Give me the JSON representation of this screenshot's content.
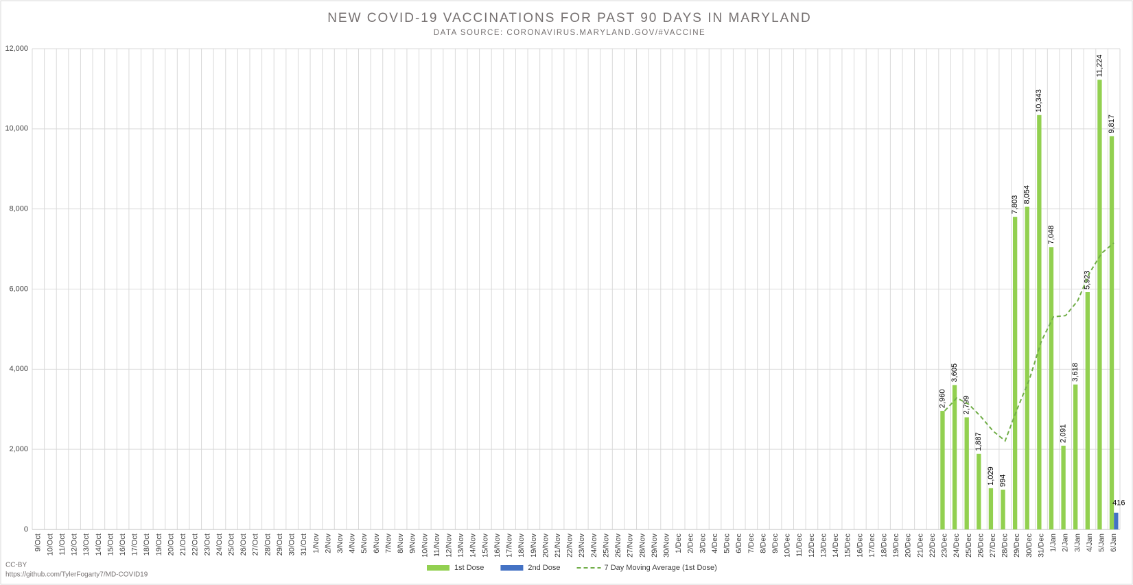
{
  "chart_data": {
    "type": "bar",
    "title": "NEW COVID-19 VACCINATIONS FOR PAST 90 DAYS IN MARYLAND",
    "subtitle": "DATA SOURCE: CORONAVIRUS.MARYLAND.GOV/#VACCINE",
    "annotations": [
      "CC-BY",
      "https://github.com/TylerFogarty7/MD-COVID19"
    ],
    "categories": [
      "9/Oct",
      "10/Oct",
      "11/Oct",
      "12/Oct",
      "13/Oct",
      "14/Oct",
      "15/Oct",
      "16/Oct",
      "17/Oct",
      "18/Oct",
      "19/Oct",
      "20/Oct",
      "21/Oct",
      "22/Oct",
      "23/Oct",
      "24/Oct",
      "25/Oct",
      "26/Oct",
      "27/Oct",
      "28/Oct",
      "29/Oct",
      "30/Oct",
      "31/Oct",
      "1/Nov",
      "2/Nov",
      "3/Nov",
      "4/Nov",
      "5/Nov",
      "6/Nov",
      "7/Nov",
      "8/Nov",
      "9/Nov",
      "10/Nov",
      "11/Nov",
      "12/Nov",
      "13/Nov",
      "14/Nov",
      "15/Nov",
      "16/Nov",
      "17/Nov",
      "18/Nov",
      "19/Nov",
      "20/Nov",
      "21/Nov",
      "22/Nov",
      "23/Nov",
      "24/Nov",
      "25/Nov",
      "26/Nov",
      "27/Nov",
      "28/Nov",
      "29/Nov",
      "30/Nov",
      "1/Dec",
      "2/Dec",
      "3/Dec",
      "4/Dec",
      "5/Dec",
      "6/Dec",
      "7/Dec",
      "8/Dec",
      "9/Dec",
      "10/Dec",
      "11/Dec",
      "12/Dec",
      "13/Dec",
      "14/Dec",
      "15/Dec",
      "16/Dec",
      "17/Dec",
      "18/Dec",
      "19/Dec",
      "20/Dec",
      "21/Dec",
      "22/Dec",
      "23/Dec",
      "24/Dec",
      "25/Dec",
      "26/Dec",
      "27/Dec",
      "28/Dec",
      "29/Dec",
      "30/Dec",
      "31/Dec",
      "1/Jan",
      "2/Jan",
      "3/Jan",
      "4/Jan",
      "5/Jan",
      "6/Jan"
    ],
    "series": [
      {
        "name": "1st Dose",
        "color": "#92d050",
        "type": "bar",
        "values": [
          null,
          null,
          null,
          null,
          null,
          null,
          null,
          null,
          null,
          null,
          null,
          null,
          null,
          null,
          null,
          null,
          null,
          null,
          null,
          null,
          null,
          null,
          null,
          null,
          null,
          null,
          null,
          null,
          null,
          null,
          null,
          null,
          null,
          null,
          null,
          null,
          null,
          null,
          null,
          null,
          null,
          null,
          null,
          null,
          null,
          null,
          null,
          null,
          null,
          null,
          null,
          null,
          null,
          null,
          null,
          null,
          null,
          null,
          null,
          null,
          null,
          null,
          null,
          null,
          null,
          null,
          null,
          null,
          null,
          null,
          null,
          null,
          null,
          null,
          null,
          2960,
          3605,
          2799,
          1887,
          1029,
          994,
          7803,
          8054,
          10343,
          7048,
          2091,
          3618,
          5923,
          11224,
          9817
        ],
        "value_labels": [
          null,
          null,
          null,
          null,
          null,
          null,
          null,
          null,
          null,
          null,
          null,
          null,
          null,
          null,
          null,
          null,
          null,
          null,
          null,
          null,
          null,
          null,
          null,
          null,
          null,
          null,
          null,
          null,
          null,
          null,
          null,
          null,
          null,
          null,
          null,
          null,
          null,
          null,
          null,
          null,
          null,
          null,
          null,
          null,
          null,
          null,
          null,
          null,
          null,
          null,
          null,
          null,
          null,
          null,
          null,
          null,
          null,
          null,
          null,
          null,
          null,
          null,
          null,
          null,
          null,
          null,
          null,
          null,
          null,
          null,
          null,
          null,
          null,
          null,
          null,
          "2,960",
          "3,605",
          "2,799",
          "1,887",
          "1,029",
          "994",
          "7,803",
          "8,054",
          "10,343",
          "7,048",
          "2,091",
          "3,618",
          "5,923",
          "11,224",
          "9,817"
        ]
      },
      {
        "name": "2nd Dose",
        "color": "#4472c4",
        "type": "bar",
        "values": [
          null,
          null,
          null,
          null,
          null,
          null,
          null,
          null,
          null,
          null,
          null,
          null,
          null,
          null,
          null,
          null,
          null,
          null,
          null,
          null,
          null,
          null,
          null,
          null,
          null,
          null,
          null,
          null,
          null,
          null,
          null,
          null,
          null,
          null,
          null,
          null,
          null,
          null,
          null,
          null,
          null,
          null,
          null,
          null,
          null,
          null,
          null,
          null,
          null,
          null,
          null,
          null,
          null,
          null,
          null,
          null,
          null,
          null,
          null,
          null,
          null,
          null,
          null,
          null,
          null,
          null,
          null,
          null,
          null,
          null,
          null,
          null,
          null,
          null,
          null,
          null,
          null,
          null,
          null,
          null,
          null,
          null,
          null,
          null,
          null,
          null,
          null,
          null,
          null,
          416
        ]
      },
      {
        "name": "7 Day Moving Average (1st Dose)",
        "color": "#70ad47",
        "type": "line",
        "values": [
          null,
          null,
          null,
          null,
          null,
          null,
          null,
          null,
          null,
          null,
          null,
          null,
          null,
          null,
          null,
          null,
          null,
          null,
          null,
          null,
          null,
          null,
          null,
          null,
          null,
          null,
          null,
          null,
          null,
          null,
          null,
          null,
          null,
          null,
          null,
          null,
          null,
          null,
          null,
          null,
          null,
          null,
          null,
          null,
          null,
          null,
          null,
          null,
          null,
          null,
          null,
          null,
          null,
          null,
          null,
          null,
          null,
          null,
          null,
          null,
          null,
          null,
          null,
          null,
          null,
          null,
          null,
          null,
          null,
          null,
          null,
          null,
          null,
          null,
          null,
          2960,
          3283,
          3121,
          2813,
          2456,
          2212,
          3011,
          3739,
          4701,
          5308,
          5337,
          5707,
          6411,
          6900,
          7152
        ]
      }
    ],
    "ylim": [
      0,
      12000
    ],
    "yticks": [
      0,
      {
        "value": 2000,
        "label": "2,000"
      },
      {
        "value": 4000,
        "label": "4,000"
      },
      {
        "value": 6000,
        "label": "6,000"
      },
      {
        "value": 8000,
        "label": "8,000"
      },
      {
        "value": 10000,
        "label": "10,000"
      },
      {
        "value": 12000,
        "label": "12,000"
      }
    ],
    "grid": true,
    "legend": "bottom"
  }
}
